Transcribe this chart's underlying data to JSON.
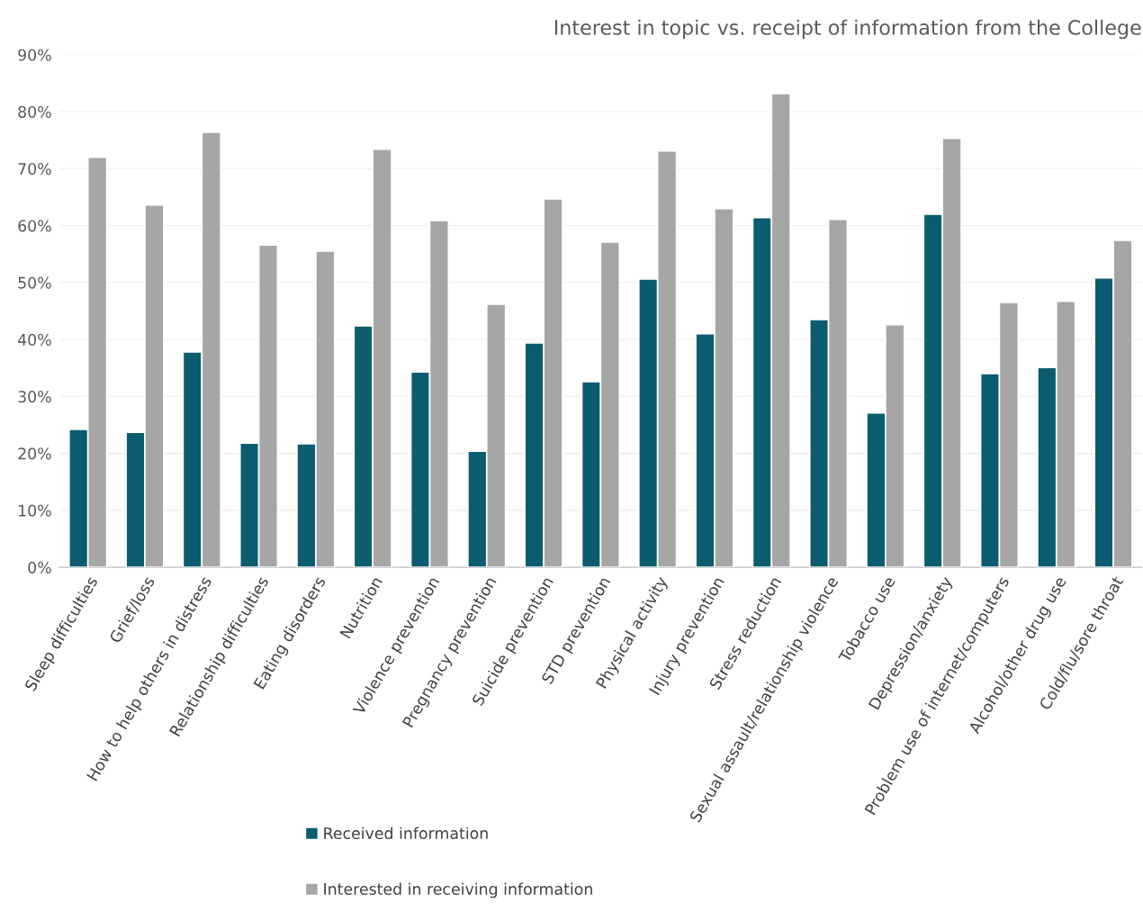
{
  "chart_data": {
    "type": "bar",
    "title": "Interest in topic vs. receipt of information from the College",
    "categories": [
      "Sleep difficulties",
      "Grief/loss",
      "How to help others in distress",
      "Relationship difficulties",
      "Eating disorders",
      "Nutrition",
      "Violence prevention",
      "Pregnancy prevention",
      "Suicide prevention",
      "STD prevention",
      "Physical activity",
      "Injury prevention",
      "Stress reduction",
      "Sexual assault/relationship violence",
      "Tobacco use",
      "Depression/anxiety",
      "Problem use of internet/computers",
      "Alcohol/other drug use",
      "Cold/flu/sore throat"
    ],
    "series": [
      {
        "name": "Received information",
        "color": "#0b5c6e",
        "values": [
          24.2,
          23.7,
          37.8,
          21.8,
          21.7,
          42.4,
          34.3,
          20.4,
          39.4,
          32.6,
          50.6,
          41.0,
          61.4,
          43.5,
          27.1,
          62.0,
          34.0,
          35.1,
          50.8
        ]
      },
      {
        "name": "Interested in receiving information",
        "color": "#a6a6a6",
        "values": [
          72.0,
          63.6,
          76.4,
          56.6,
          55.5,
          73.4,
          60.9,
          46.2,
          64.7,
          57.1,
          73.1,
          63.0,
          83.2,
          61.1,
          42.6,
          75.3,
          46.5,
          46.7,
          57.4
        ]
      }
    ],
    "ylim": [
      0,
      90
    ],
    "yticks": [
      {
        "value": 0,
        "label": "0%"
      },
      {
        "value": 10,
        "label": "10%"
      },
      {
        "value": 20,
        "label": "20%"
      },
      {
        "value": 30,
        "label": "30%"
      },
      {
        "value": 40,
        "label": "40%"
      },
      {
        "value": 50,
        "label": "50%"
      },
      {
        "value": 60,
        "label": "60%"
      },
      {
        "value": 70,
        "label": "70%"
      },
      {
        "value": 80,
        "label": "80%"
      },
      {
        "value": 90,
        "label": "90%"
      }
    ],
    "grid": "y",
    "legend": "bottom left"
  }
}
